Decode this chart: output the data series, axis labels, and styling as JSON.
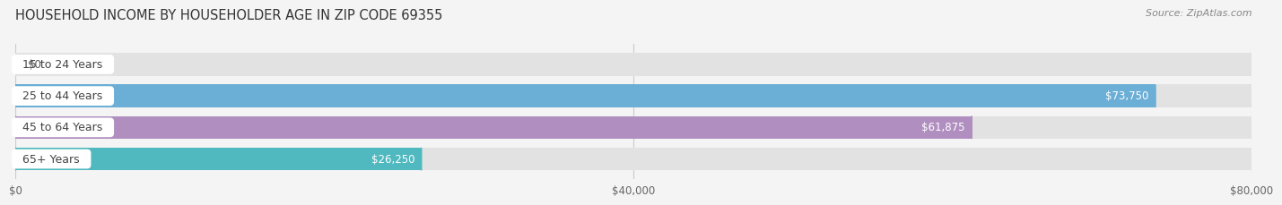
{
  "title": "HOUSEHOLD INCOME BY HOUSEHOLDER AGE IN ZIP CODE 69355",
  "source": "Source: ZipAtlas.com",
  "categories": [
    "15 to 24 Years",
    "25 to 44 Years",
    "45 to 64 Years",
    "65+ Years"
  ],
  "values": [
    0,
    73750,
    61875,
    26250
  ],
  "bar_colors": [
    "#f4a9a8",
    "#6baed6",
    "#b08fc0",
    "#50b8bf"
  ],
  "bar_labels": [
    "$0",
    "$73,750",
    "$61,875",
    "$26,250"
  ],
  "background_color": "#f4f4f4",
  "bar_bg_color": "#e2e2e2",
  "xlim": [
    0,
    80000
  ],
  "xticks": [
    0,
    40000,
    80000
  ],
  "xtick_labels": [
    "$0",
    "$40,000",
    "$80,000"
  ],
  "title_fontsize": 10.5,
  "source_fontsize": 8,
  "label_fontsize": 8.5,
  "tick_fontsize": 8.5,
  "category_fontsize": 9
}
